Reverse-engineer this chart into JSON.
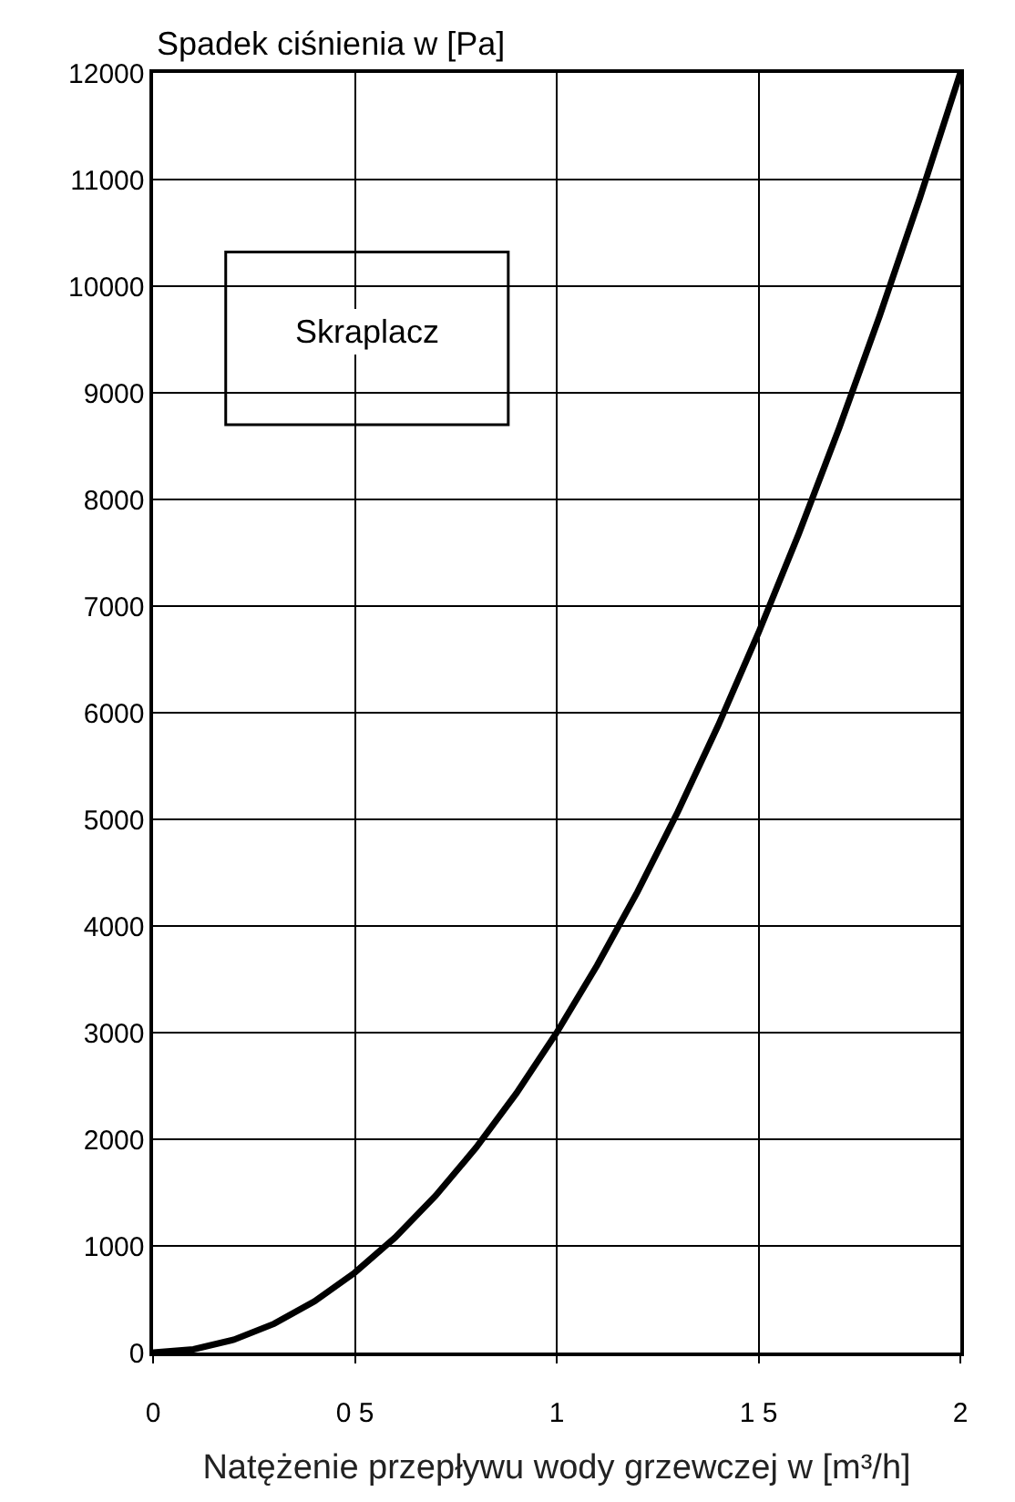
{
  "chart_data": {
    "type": "line",
    "ylabel": "Spadek ciśnienia w [Pa]",
    "xlabel": "Natężenie przepływu wody grzewczej w [m³/h]",
    "annotations": [
      "Skraplacz"
    ],
    "x": [
      0,
      0.1,
      0.2,
      0.3,
      0.4,
      0.5,
      0.6,
      0.7,
      0.8,
      0.9,
      1.0,
      1.1,
      1.2,
      1.3,
      1.4,
      1.5,
      1.6,
      1.7,
      1.8,
      1.9,
      2.0
    ],
    "series": [
      {
        "color": "#000000",
        "values": [
          0,
          30,
          120,
          270,
          480,
          750,
          1080,
          1470,
          1920,
          2430,
          3000,
          3630,
          4320,
          5070,
          5880,
          6750,
          7680,
          8670,
          9720,
          10830,
          12000
        ]
      }
    ],
    "xlim": [
      0,
      2
    ],
    "xticks": [
      0,
      {
        "value": 0.5,
        "label": "0 5"
      },
      1,
      {
        "value": 1.5,
        "label": "1 5"
      },
      2
    ],
    "ylim": [
      0,
      12000
    ],
    "yticks": [
      0,
      1000,
      2000,
      3000,
      4000,
      5000,
      6000,
      7000,
      8000,
      9000,
      10000,
      11000,
      12000
    ],
    "grid": true,
    "marker": "none",
    "line_style": "solid"
  }
}
